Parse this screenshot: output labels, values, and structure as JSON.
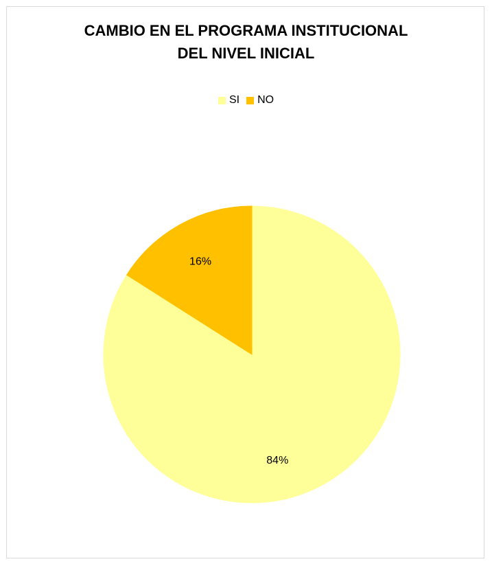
{
  "chart_data": {
    "type": "pie",
    "title_lines": [
      "CAMBIO EN EL PROGRAMA INSTITUCIONAL",
      "DEL NIVEL INICIAL"
    ],
    "categories": [
      "SI",
      "NO"
    ],
    "values": [
      84,
      16
    ],
    "data_labels": [
      "84%",
      "16%"
    ],
    "colors": [
      "#FFFF99",
      "#FFC000"
    ],
    "legend_position": "top",
    "start_angle_deg": 0,
    "direction": "counterclockwise-from-NO"
  }
}
